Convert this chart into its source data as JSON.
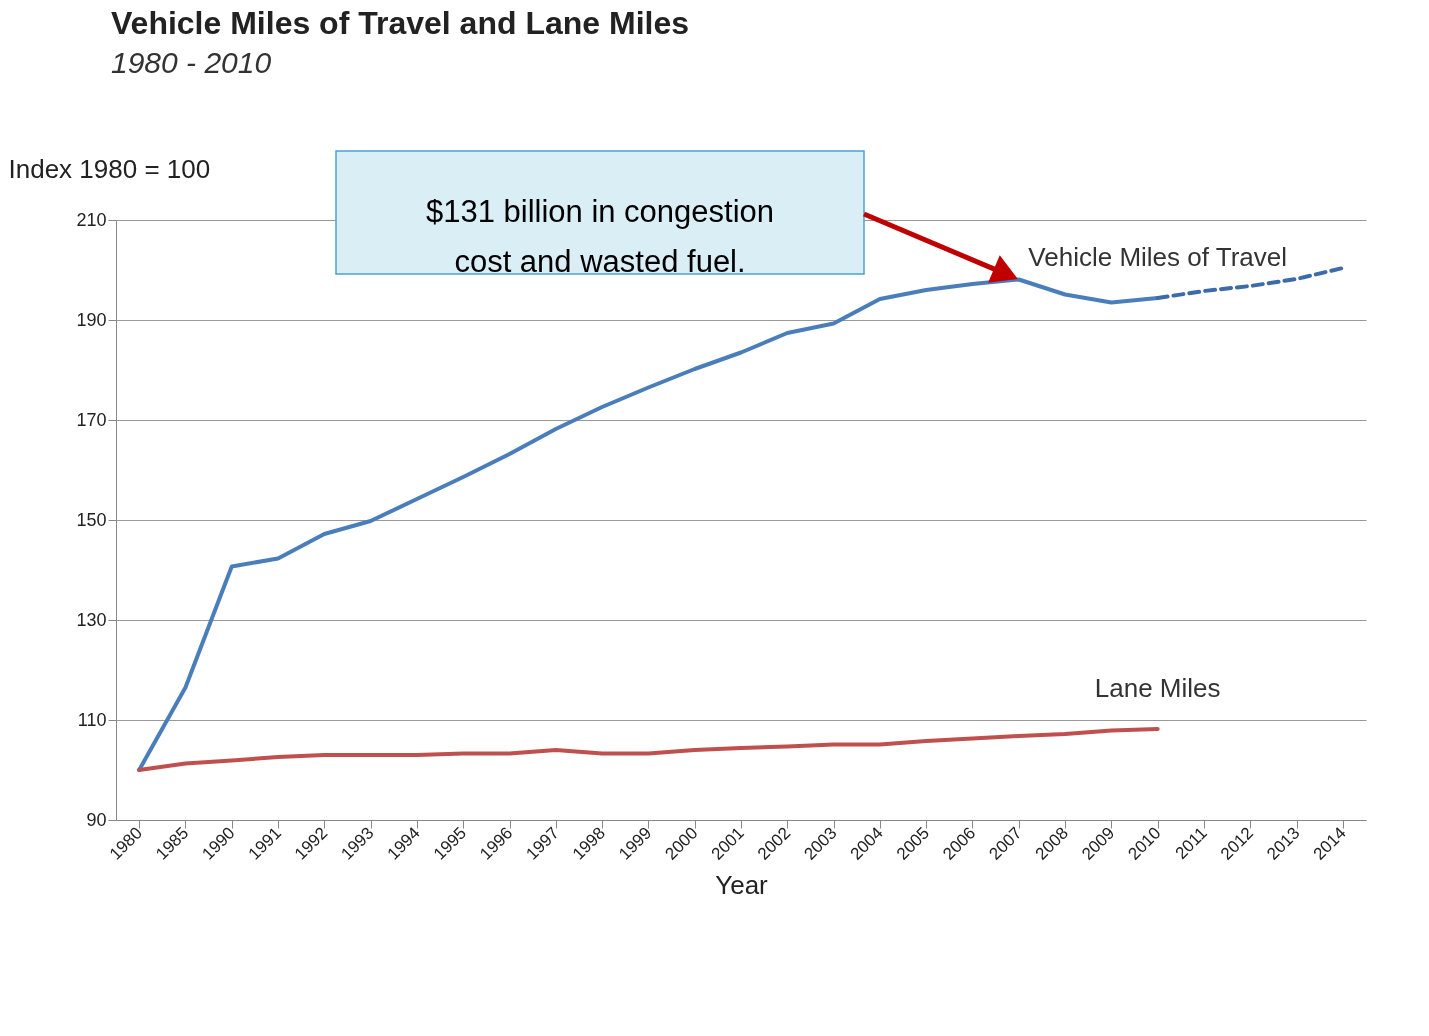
{
  "chart_data": {
    "type": "line",
    "title": "Vehicle Miles of Travel and Lane Miles",
    "subtitle": "1980 - 2010",
    "xlabel": "Year",
    "ylabel": "Index 1980 = 100",
    "categories": [
      "1980",
      "1985",
      "1990",
      "1991",
      "1992",
      "1993",
      "1994",
      "1995",
      "1996",
      "1997",
      "1998",
      "1999",
      "2000",
      "2001",
      "2002",
      "2003",
      "2004",
      "2005",
      "2006",
      "2007",
      "2008",
      "2009",
      "2010",
      "2011",
      "2012",
      "2013",
      "2014"
    ],
    "series": [
      {
        "name": "Vehicle Miles of Travel",
        "color": "#4a7ebb",
        "values": [
          100,
          116.5,
          140.7,
          142.3,
          147.2,
          149.8,
          154.2,
          158.6,
          163.2,
          168.2,
          172.6,
          176.5,
          180.2,
          183.5,
          187.4,
          189.3,
          194.2,
          196,
          197.2,
          198.1,
          195.1,
          193.5,
          194.4,
          null,
          null,
          null,
          null
        ]
      },
      {
        "color": "#3d6aa8",
        "line_style": "dashed",
        "values": [
          null,
          null,
          null,
          null,
          null,
          null,
          null,
          null,
          null,
          null,
          null,
          null,
          null,
          null,
          null,
          null,
          null,
          null,
          null,
          null,
          null,
          null,
          194.4,
          195.8,
          196.8,
          198.2,
          200.4
        ]
      },
      {
        "name": "Lane Miles",
        "color": "#c0504d",
        "values": [
          100,
          101.3,
          101.9,
          102.6,
          103,
          103,
          103,
          103.3,
          103.3,
          104,
          103.3,
          103.3,
          104,
          104.4,
          104.7,
          105.1,
          105.1,
          105.8,
          106.3,
          106.8,
          107.2,
          107.9,
          108.2,
          null,
          null,
          null,
          null
        ]
      }
    ],
    "ylim": [
      90,
      210
    ],
    "yticks": [
      90,
      110,
      130,
      150,
      170,
      190,
      210
    ],
    "grid": "y",
    "legend": false,
    "annotations": [
      "$131 billion in congestion\ncost and wasted fuel."
    ]
  }
}
